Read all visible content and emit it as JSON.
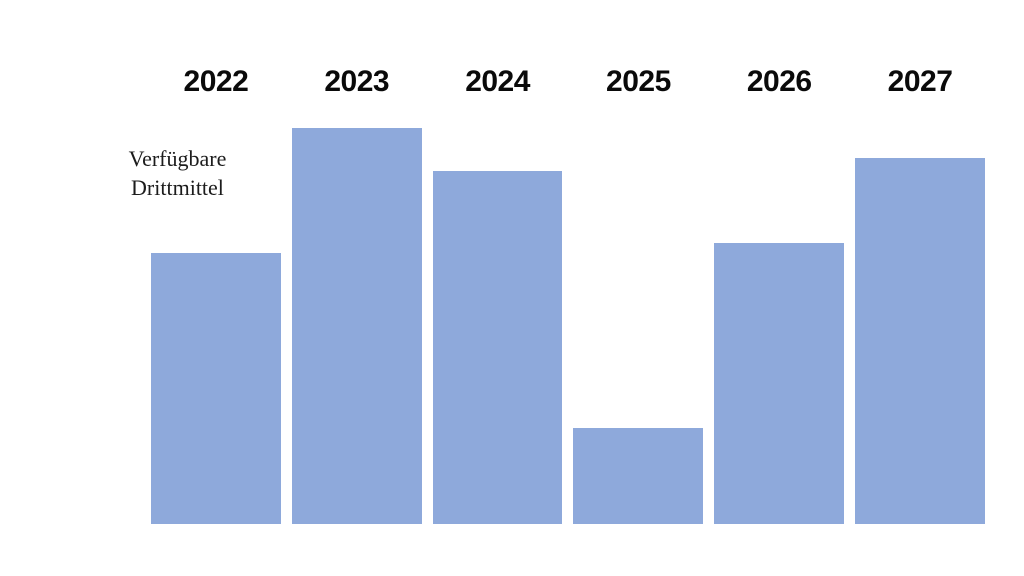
{
  "chart_data": {
    "type": "bar",
    "title": "",
    "categories": [
      "2022",
      "2023",
      "2024",
      "2025",
      "2026",
      "2027"
    ],
    "series": [
      {
        "name": "Verfügbare Drittmittel",
        "values": [
          68.4,
          100,
          89.1,
          24.2,
          71.0,
          92.4
        ]
      }
    ],
    "value_note": "relative bar heights (percent of tallest bar); no value axis or gridlines shown",
    "xlabel": "",
    "ylabel": "",
    "ylim": [
      0,
      100
    ],
    "grid": false,
    "legend_position": "none",
    "bar_color": "#8EA9DB",
    "category_label_color": "#0a0a0a",
    "background_color": "#ffffff"
  },
  "annotation": {
    "line1": "Verfügbare",
    "line2": "Drittmittel"
  }
}
